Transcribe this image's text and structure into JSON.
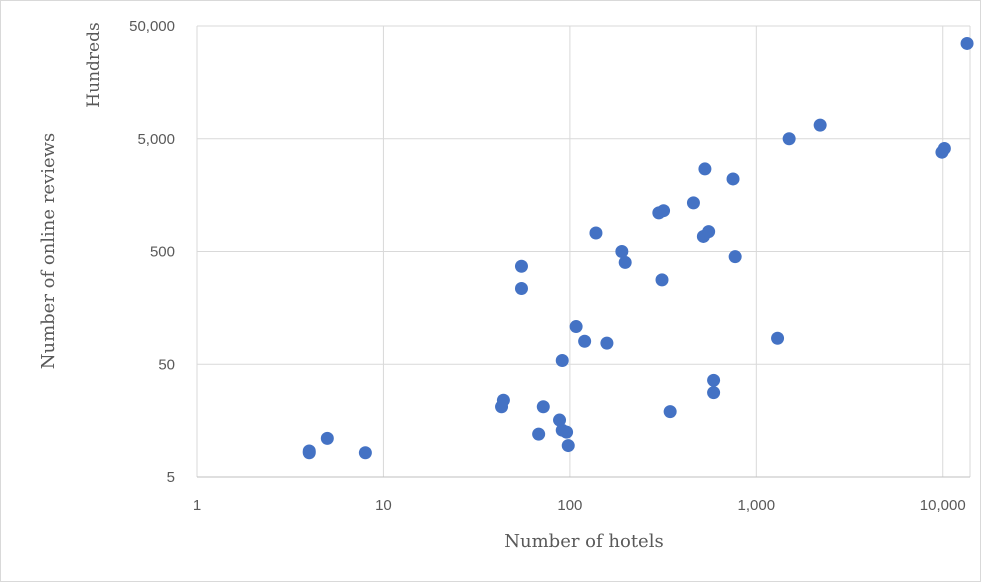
{
  "chart_data": {
    "type": "scatter",
    "title": "",
    "xlabel": "Number  of hotels",
    "ylabel": "Number  of online reviews",
    "y_unit_label": "Hundreds",
    "xscale": "log",
    "yscale": "log",
    "xlim": [
      1,
      14000
    ],
    "ylim": [
      5,
      50000
    ],
    "x_ticks": [
      1,
      10,
      100,
      1000,
      10000
    ],
    "x_tick_labels": [
      "1",
      "10",
      "100",
      "1,000",
      "10,000"
    ],
    "y_ticks": [
      5,
      50,
      500,
      5000,
      50000
    ],
    "y_tick_labels": [
      "5",
      "50",
      "500",
      "5,000",
      "50,000"
    ],
    "grid": true,
    "legend": "none",
    "color": "#4472c4",
    "points": [
      {
        "x": 4,
        "y": 8.5
      },
      {
        "x": 4,
        "y": 8.2
      },
      {
        "x": 5,
        "y": 11
      },
      {
        "x": 8,
        "y": 8.2
      },
      {
        "x": 43,
        "y": 21
      },
      {
        "x": 44,
        "y": 24
      },
      {
        "x": 55,
        "y": 370
      },
      {
        "x": 55,
        "y": 235
      },
      {
        "x": 68,
        "y": 12
      },
      {
        "x": 72,
        "y": 21
      },
      {
        "x": 88,
        "y": 16
      },
      {
        "x": 91,
        "y": 13
      },
      {
        "x": 91,
        "y": 54
      },
      {
        "x": 96,
        "y": 12.5
      },
      {
        "x": 98,
        "y": 9.5
      },
      {
        "x": 108,
        "y": 108
      },
      {
        "x": 120,
        "y": 80
      },
      {
        "x": 138,
        "y": 730
      },
      {
        "x": 158,
        "y": 77
      },
      {
        "x": 190,
        "y": 500
      },
      {
        "x": 198,
        "y": 400
      },
      {
        "x": 300,
        "y": 1100
      },
      {
        "x": 312,
        "y": 280
      },
      {
        "x": 318,
        "y": 1150
      },
      {
        "x": 345,
        "y": 19
      },
      {
        "x": 460,
        "y": 1350
      },
      {
        "x": 520,
        "y": 680
      },
      {
        "x": 530,
        "y": 2700
      },
      {
        "x": 555,
        "y": 750
      },
      {
        "x": 590,
        "y": 36
      },
      {
        "x": 590,
        "y": 28
      },
      {
        "x": 750,
        "y": 2200
      },
      {
        "x": 770,
        "y": 450
      },
      {
        "x": 1300,
        "y": 85
      },
      {
        "x": 1500,
        "y": 5000
      },
      {
        "x": 2200,
        "y": 6600
      },
      {
        "x": 9900,
        "y": 3800
      },
      {
        "x": 10200,
        "y": 4100
      },
      {
        "x": 13500,
        "y": 35000
      }
    ]
  }
}
